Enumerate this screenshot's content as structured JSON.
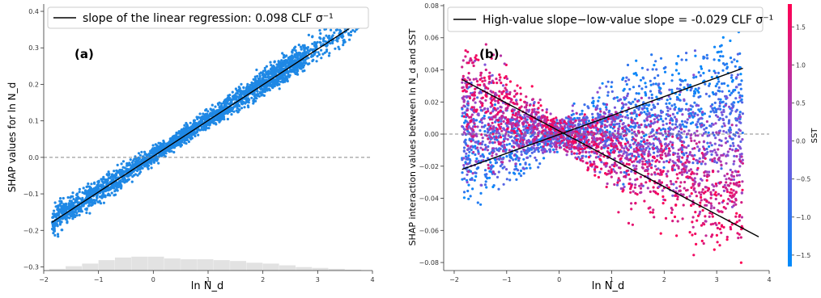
{
  "colors": {
    "points_a": "#1f88e5",
    "hist": "#e2e2e2",
    "regression_line": "#000000",
    "zero_line": "#888888",
    "colorbar_high": "#ff0052",
    "colorbar_mid": "#8a4fd6",
    "colorbar_low": "#008bfb"
  },
  "chart_data": [
    {
      "type": "scatter",
      "panel_label": "(a)",
      "xlabel": "ln N_d",
      "ylabel": "SHAP values for ln N_d",
      "xlim": [
        -2.0,
        4.0
      ],
      "ylim": [
        -0.31,
        0.42
      ],
      "xticks": [
        -2,
        -1,
        0,
        1,
        2,
        3,
        4
      ],
      "yticks": [
        -0.3,
        -0.2,
        -0.1,
        0.0,
        0.1,
        0.2,
        0.3,
        0.4
      ],
      "xtick_labels": [
        "−2",
        "−1",
        "0",
        "1",
        "2",
        "3",
        "4"
      ],
      "ytick_labels": [
        "−0.3",
        "−0.2",
        "−0.1",
        "0.0",
        "0.1",
        "0.2",
        "0.3",
        "0.4"
      ],
      "zero_line": 0.0,
      "legend": "slope of the linear regression: 0.098 CLF σ⁻¹",
      "legend_position": "top-left",
      "regression_line": {
        "x": [
          -1.85,
          3.8
        ],
        "y": [
          -0.178,
          0.375
        ]
      },
      "point_cloud": {
        "x_range": [
          -1.85,
          3.8
        ],
        "slope": 0.098,
        "intercept": 0.006,
        "spread": 0.035,
        "color": "#1f88e5"
      },
      "histogram": {
        "bin_edges": [
          -1.9,
          -1.6,
          -1.3,
          -1.0,
          -0.7,
          -0.4,
          -0.1,
          0.2,
          0.5,
          0.8,
          1.1,
          1.4,
          1.7,
          2.0,
          2.3,
          2.6,
          2.9,
          3.2,
          3.5,
          3.8
        ],
        "counts": [
          2,
          5,
          8,
          12,
          15,
          16,
          16,
          14,
          13,
          13,
          12,
          11,
          9,
          8,
          6,
          4,
          3,
          2,
          1
        ]
      }
    },
    {
      "type": "scatter",
      "panel_label": "(b)",
      "xlabel": "ln N_d",
      "ylabel": "SHAP interaction values between ln N_d and SST",
      "xlim": [
        -2.2,
        4.0
      ],
      "ylim": [
        -0.085,
        0.081
      ],
      "xticks": [
        -2,
        -1,
        0,
        1,
        2,
        3,
        4
      ],
      "yticks": [
        -0.08,
        -0.06,
        -0.04,
        -0.02,
        0.0,
        0.02,
        0.04,
        0.06,
        0.08
      ],
      "xtick_labels": [
        "−2",
        "−1",
        "0",
        "1",
        "2",
        "3",
        "4"
      ],
      "ytick_labels": [
        "−0.08",
        "−0.06",
        "−0.04",
        "−0.02",
        "0.00",
        "0.02",
        "0.04",
        "0.06",
        "0.08"
      ],
      "zero_line": 0.0,
      "legend": "High-value slope−low-value slope = -0.029 CLF σ⁻¹",
      "legend_position": "top",
      "high_sst_line": {
        "x": [
          -1.85,
          3.8
        ],
        "y": [
          0.034,
          -0.064
        ]
      },
      "low_sst_line": {
        "x": [
          -1.85,
          3.5
        ],
        "y": [
          -0.022,
          0.041
        ]
      },
      "colorbar": {
        "label": "SST",
        "range": [
          -1.65,
          1.8
        ],
        "ticks": [
          -1.5,
          -1.0,
          -0.5,
          0.0,
          0.5,
          1.0,
          1.5
        ],
        "tick_labels": [
          "−1.5",
          "−1.0",
          "−0.5",
          "0.0",
          "0.5",
          "1.0",
          "1.5"
        ],
        "colors": [
          "#008bfb",
          "#8a4fd6",
          "#ff0052"
        ]
      }
    }
  ]
}
